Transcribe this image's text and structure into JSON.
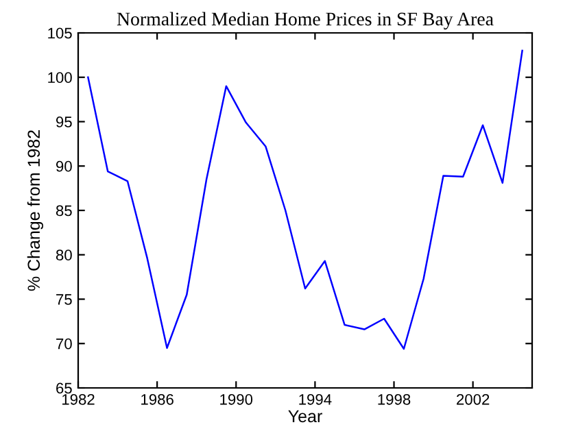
{
  "chart_data": {
    "type": "line",
    "title": "Normalized Median Home Prices in SF Bay Area",
    "xlabel": "Year",
    "ylabel": "% Change from 1982",
    "x": [
      1982.5,
      1983.5,
      1984.5,
      1985.5,
      1986.5,
      1987.5,
      1988.5,
      1989.5,
      1990.5,
      1991.5,
      1992.5,
      1993.5,
      1994.5,
      1995.5,
      1996.5,
      1997.5,
      1998.5,
      1999.5,
      2000.5,
      2001.5,
      2002.5,
      2003.5,
      2004.5
    ],
    "series": [
      {
        "color": "#0000ff",
        "values": [
          100.0,
          89.4,
          88.3,
          79.6,
          69.5,
          75.5,
          88.5,
          99.0,
          94.9,
          92.2,
          85.0,
          76.2,
          79.3,
          72.1,
          71.6,
          72.8,
          69.4,
          77.3,
          88.9,
          88.8,
          94.6,
          88.1,
          103.0
        ]
      }
    ],
    "xlim": [
      1982,
      2005
    ],
    "ylim": [
      65,
      105
    ],
    "xticks": [
      1982,
      1986,
      1990,
      1994,
      1998,
      2002
    ],
    "yticks": [
      65,
      70,
      75,
      80,
      85,
      90,
      95,
      100,
      105
    ],
    "grid": false,
    "legend": false
  }
}
